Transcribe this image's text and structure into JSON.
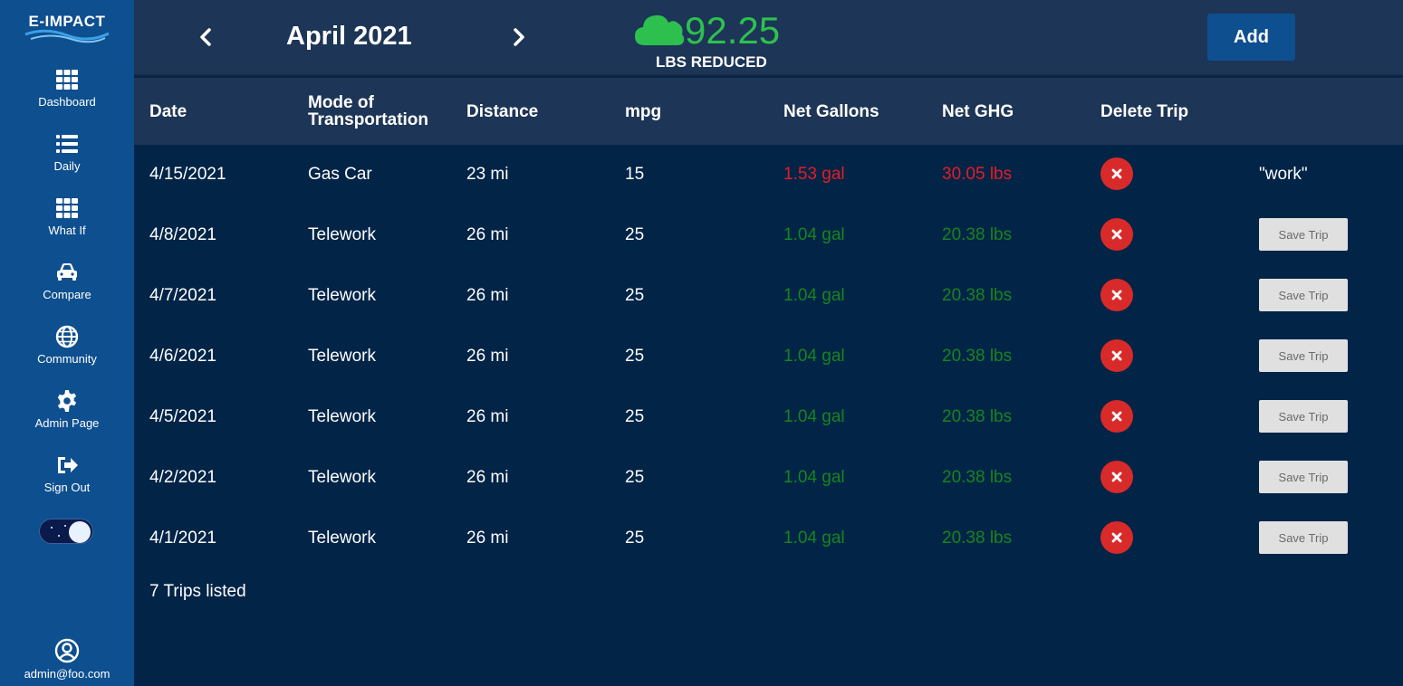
{
  "sidebar": {
    "logo": "E-IMPACT",
    "items": [
      {
        "label": "Dashboard",
        "icon": "grid-icon"
      },
      {
        "label": "Daily",
        "icon": "list-icon"
      },
      {
        "label": "What If",
        "icon": "grid-icon"
      },
      {
        "label": "Compare",
        "icon": "car-icon"
      },
      {
        "label": "Community",
        "icon": "globe-icon"
      },
      {
        "label": "Admin Page",
        "icon": "gear-icon"
      },
      {
        "label": "Sign Out",
        "icon": "sign-out-icon"
      }
    ],
    "user_email": "admin@foo.com"
  },
  "header": {
    "month": "April 2021",
    "reduced_value": "92.25",
    "reduced_label": "LBS REDUCED",
    "add_label": "Add"
  },
  "table": {
    "columns": [
      "Date",
      "Mode of Transportation",
      "Distance",
      "mpg",
      "Net Gallons",
      "Net GHG",
      "Delete Trip"
    ],
    "rows": [
      {
        "date": "4/15/2021",
        "mode": "Gas Car",
        "distance": "23 mi",
        "mpg": "15",
        "gallons": "1.53 gal",
        "ghg": "30.05 lbs",
        "status": "increase",
        "note": "\"work\""
      },
      {
        "date": "4/8/2021",
        "mode": "Telework",
        "distance": "26 mi",
        "mpg": "25",
        "gallons": "1.04 gal",
        "ghg": "20.38 lbs",
        "status": "reduced",
        "save_label": "Save Trip"
      },
      {
        "date": "4/7/2021",
        "mode": "Telework",
        "distance": "26 mi",
        "mpg": "25",
        "gallons": "1.04 gal",
        "ghg": "20.38 lbs",
        "status": "reduced",
        "save_label": "Save Trip"
      },
      {
        "date": "4/6/2021",
        "mode": "Telework",
        "distance": "26 mi",
        "mpg": "25",
        "gallons": "1.04 gal",
        "ghg": "20.38 lbs",
        "status": "reduced",
        "save_label": "Save Trip"
      },
      {
        "date": "4/5/2021",
        "mode": "Telework",
        "distance": "26 mi",
        "mpg": "25",
        "gallons": "1.04 gal",
        "ghg": "20.38 lbs",
        "status": "reduced",
        "save_label": "Save Trip"
      },
      {
        "date": "4/2/2021",
        "mode": "Telework",
        "distance": "26 mi",
        "mpg": "25",
        "gallons": "1.04 gal",
        "ghg": "20.38 lbs",
        "status": "reduced",
        "save_label": "Save Trip"
      },
      {
        "date": "4/1/2021",
        "mode": "Telework",
        "distance": "26 mi",
        "mpg": "25",
        "gallons": "1.04 gal",
        "ghg": "20.38 lbs",
        "status": "reduced",
        "save_label": "Save Trip"
      }
    ],
    "footer": "7 Trips listed"
  },
  "colors": {
    "background": "#012447",
    "sidebar": "#0e4f8f",
    "header": "#1d3556",
    "accent_green": "#2ec04e",
    "increase_red": "#e61c24",
    "reduced_green": "#17851e",
    "delete_red": "#d92a2a"
  }
}
